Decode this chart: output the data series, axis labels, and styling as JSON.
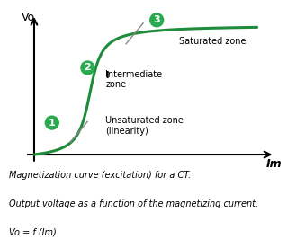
{
  "background_color": "#ffffff",
  "curve_color": "#1e8c3a",
  "annotation_bg": "#2aaa50",
  "ylabel": "Vo",
  "xlabel": "Im",
  "zone1_label": "Unsaturated zone\n(linearity)",
  "zone2_label": "Intermediate\nzone",
  "zone3_label": "Saturated zone",
  "caption_line1": "Magnetization curve (excitation) for a CT.",
  "caption_line2": "Output voltage as a function of the magnetizing current.",
  "caption_line3": "Vo = f (Im)",
  "font_size_caption": 7.0,
  "font_size_zone": 7.0,
  "font_size_axis_label": 9
}
